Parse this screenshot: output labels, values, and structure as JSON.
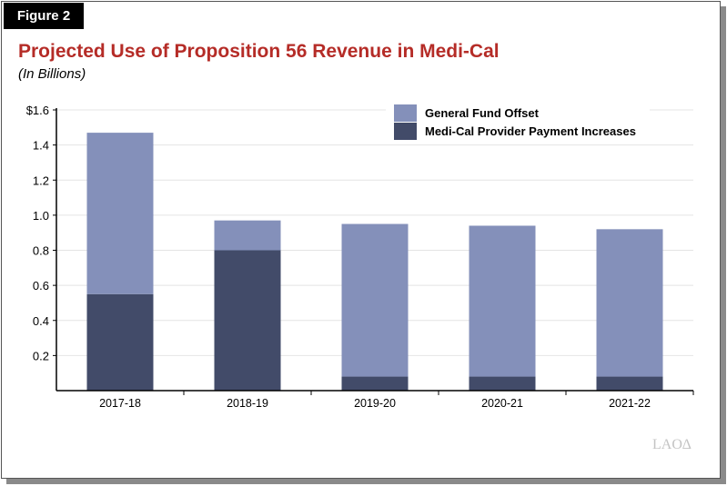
{
  "figure_label": "Figure 2",
  "chart_data": {
    "type": "bar",
    "stacked": true,
    "title": "Projected Use of Proposition 56 Revenue in Medi-Cal",
    "subtitle": "(In Billions)",
    "categories": [
      "2017-18",
      "2018-19",
      "2019-20",
      "2020-21",
      "2021-22"
    ],
    "series": [
      {
        "name": "Medi-Cal Provider Payment Increases",
        "color": "#424b69",
        "values": [
          0.55,
          0.8,
          0.08,
          0.08,
          0.08
        ]
      },
      {
        "name": "General Fund Offset",
        "color": "#8490ba",
        "values": [
          0.92,
          0.17,
          0.87,
          0.86,
          0.84
        ]
      }
    ],
    "yticks": [
      "0.2",
      "0.4",
      "0.6",
      "0.8",
      "1.0",
      "1.2",
      "1.4",
      "$1.6"
    ],
    "ylim": [
      0,
      1.6
    ],
    "grid": true,
    "legend": "top-right"
  },
  "logo": "LAO"
}
